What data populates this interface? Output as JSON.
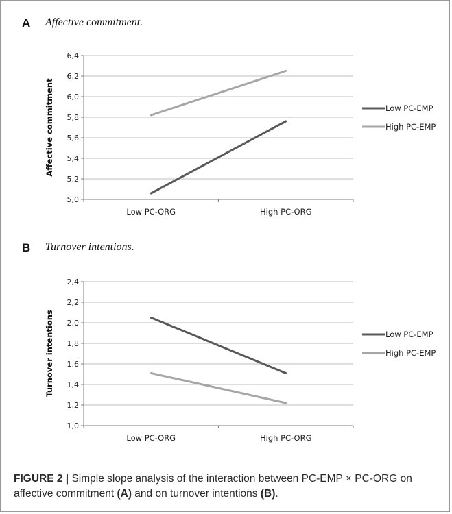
{
  "panels": [
    {
      "letter": "A",
      "title": "Affective commitment."
    },
    {
      "letter": "B",
      "title": "Turnover intentions."
    }
  ],
  "caption": {
    "label": "FIGURE 2 |",
    "text1": " Simple slope analysis of the interaction between PC-EMP × PC-ORG on affective commitment ",
    "refA": "(A)",
    "text2": " and on turnover intentions ",
    "refB": "(B)",
    "text3": "."
  },
  "colors": {
    "low": "#595959",
    "high": "#a6a6a6",
    "grid": "#bfbfbf"
  },
  "chart_data": [
    {
      "type": "line",
      "categories": [
        "Low PC-ORG",
        "High PC-ORG"
      ],
      "series": [
        {
          "name": "Low PC-EMP",
          "values": [
            5.06,
            5.76
          ]
        },
        {
          "name": "High PC-EMP",
          "values": [
            5.82,
            6.25
          ]
        }
      ],
      "ylabel": "Affective commitment",
      "ylim": [
        5.0,
        6.4
      ],
      "yticks": [
        "5,0",
        "5,2",
        "5,4",
        "5,6",
        "5,8",
        "6,0",
        "6,2",
        "6,4"
      ],
      "grid": true,
      "legend": "right"
    },
    {
      "type": "line",
      "categories": [
        "Low PC-ORG",
        "High PC-ORG"
      ],
      "series": [
        {
          "name": "Low PC-EMP",
          "values": [
            2.05,
            1.51
          ]
        },
        {
          "name": "High PC-EMP",
          "values": [
            1.51,
            1.22
          ]
        }
      ],
      "ylabel": "Turnover intentions",
      "ylim": [
        1.0,
        2.4
      ],
      "yticks": [
        "1,0",
        "1,2",
        "1,4",
        "1,6",
        "1,8",
        "2,0",
        "2,2",
        "2,4"
      ],
      "grid": true,
      "legend": "right"
    }
  ]
}
